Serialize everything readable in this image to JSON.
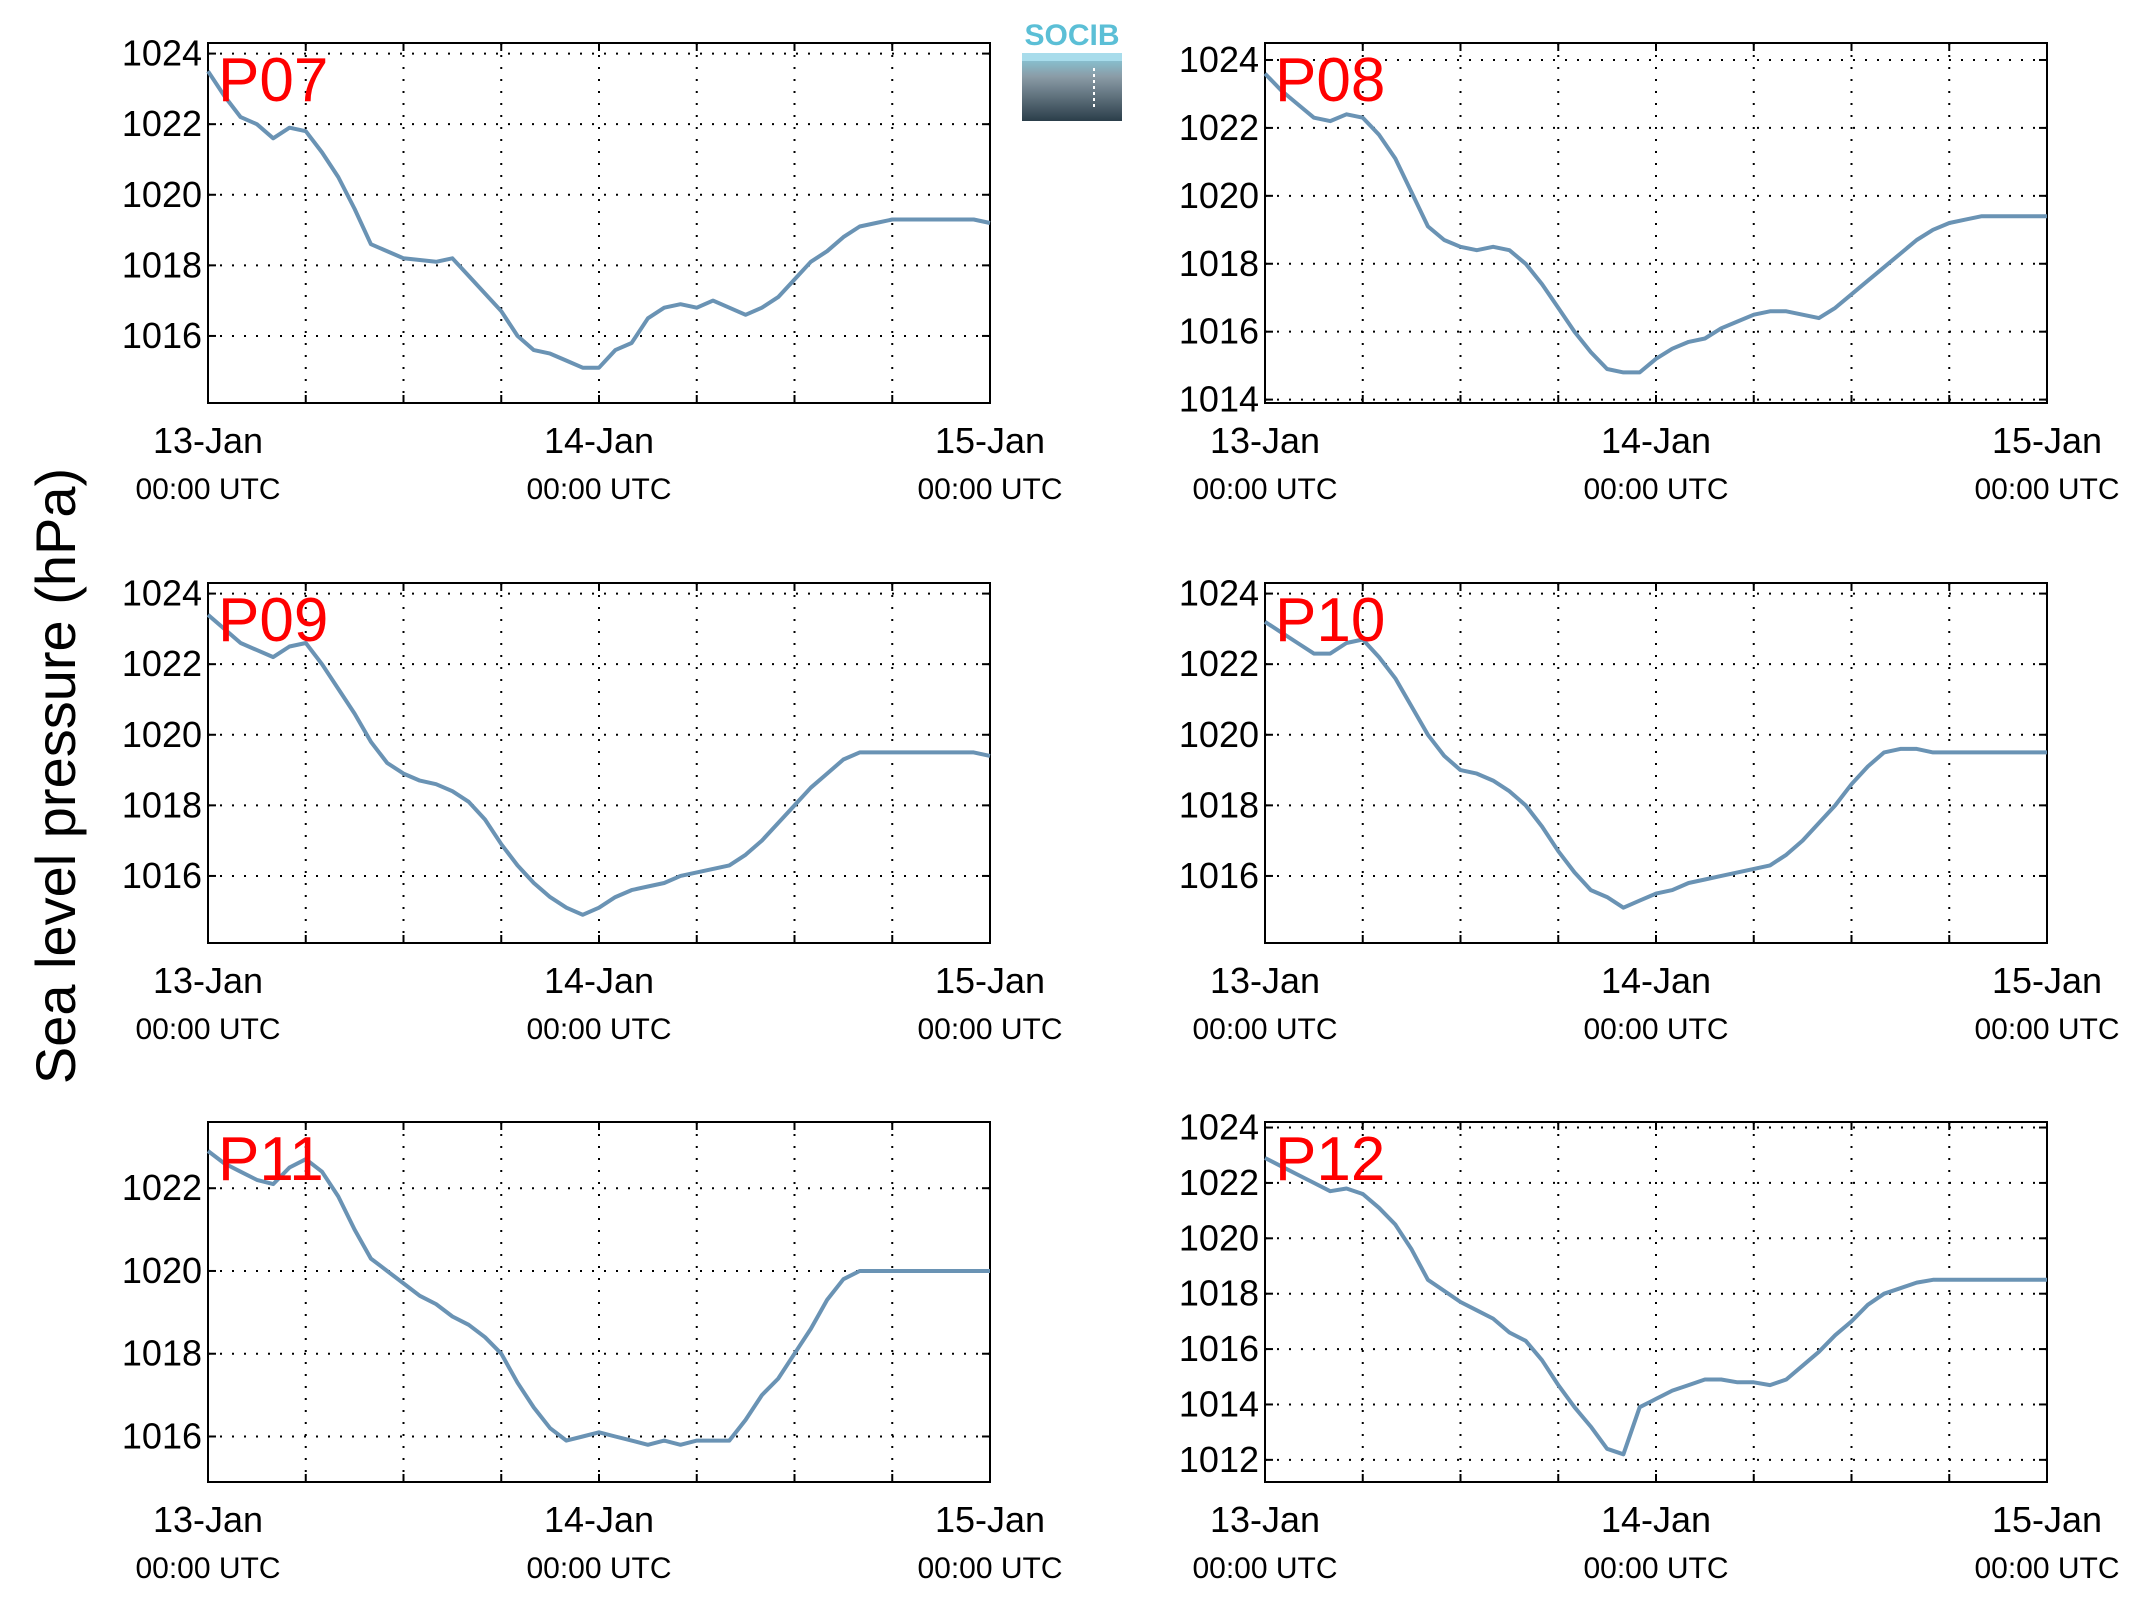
{
  "figure": {
    "ylabel": "Sea level pressure (hPa)",
    "logo_text": "SOCIB",
    "colors": {
      "line": "#6a93b4",
      "panel_title": "#ff0000",
      "logo_text": "#5bbfd6",
      "logo_top": "#86cfe0",
      "logo_bottom": "#2b3e4a"
    }
  },
  "chart_data": [
    {
      "type": "line",
      "title": "P07",
      "ylim": [
        1014.1,
        1024.3
      ],
      "yticks": [
        1016,
        1018,
        1020,
        1022,
        1024
      ],
      "x_ticks": [
        {
          "date": "13-Jan",
          "time": "00:00 UTC"
        },
        {
          "date": "14-Jan",
          "time": "00:00 UTC"
        },
        {
          "date": "15-Jan",
          "time": "00:00 UTC"
        }
      ],
      "grid": true,
      "x_range_hours": [
        0,
        48
      ],
      "x": [
        0,
        1,
        2,
        3,
        4,
        5,
        6,
        7,
        8,
        9,
        10,
        12,
        14,
        15,
        16,
        18,
        19,
        20,
        21,
        22,
        23,
        24,
        25,
        26,
        27,
        28,
        29,
        30,
        31,
        32,
        33,
        34,
        35,
        36,
        37,
        38,
        39,
        40,
        41,
        42,
        43,
        44,
        45,
        46,
        47,
        48
      ],
      "y": [
        1023.5,
        1022.8,
        1022.2,
        1022.0,
        1021.6,
        1021.9,
        1021.8,
        1021.2,
        1020.5,
        1019.6,
        1018.6,
        1018.2,
        1018.1,
        1018.2,
        1017.7,
        1016.7,
        1016.0,
        1015.6,
        1015.5,
        1015.3,
        1015.1,
        1015.1,
        1015.6,
        1015.8,
        1016.5,
        1016.8,
        1016.9,
        1016.8,
        1017.0,
        1016.8,
        1016.6,
        1016.8,
        1017.1,
        1017.6,
        1018.1,
        1018.4,
        1018.8,
        1019.1,
        1019.2,
        1019.3,
        1019.3,
        1019.3,
        1019.3,
        1019.3,
        1019.3,
        1019.2
      ]
    },
    {
      "type": "line",
      "title": "P08",
      "ylim": [
        1013.9,
        1024.5
      ],
      "yticks": [
        1014,
        1016,
        1018,
        1020,
        1022,
        1024
      ],
      "x_ticks": [
        {
          "date": "13-Jan",
          "time": "00:00 UTC"
        },
        {
          "date": "14-Jan",
          "time": "00:00 UTC"
        },
        {
          "date": "15-Jan",
          "time": "00:00 UTC"
        }
      ],
      "grid": true,
      "x_range_hours": [
        0,
        48
      ],
      "x": [
        0,
        1,
        2,
        3,
        4,
        5,
        6,
        7,
        8,
        9,
        10,
        11,
        12,
        13,
        14,
        15,
        16,
        17,
        18,
        19,
        20,
        21,
        22,
        23,
        24,
        25,
        26,
        27,
        28,
        29,
        30,
        31,
        32,
        33,
        34,
        35,
        36,
        37,
        38,
        39,
        40,
        41,
        42,
        43,
        44,
        45,
        46,
        47,
        48
      ],
      "y": [
        1023.6,
        1023.1,
        1022.7,
        1022.3,
        1022.2,
        1022.4,
        1022.3,
        1021.8,
        1021.1,
        1020.1,
        1019.1,
        1018.7,
        1018.5,
        1018.4,
        1018.5,
        1018.4,
        1018.0,
        1017.4,
        1016.7,
        1016.0,
        1015.4,
        1014.9,
        1014.8,
        1014.8,
        1015.2,
        1015.5,
        1015.7,
        1015.8,
        1016.1,
        1016.3,
        1016.5,
        1016.6,
        1016.6,
        1016.5,
        1016.4,
        1016.7,
        1017.1,
        1017.5,
        1017.9,
        1018.3,
        1018.7,
        1019.0,
        1019.2,
        1019.3,
        1019.4,
        1019.4,
        1019.4,
        1019.4,
        1019.4
      ]
    },
    {
      "type": "line",
      "title": "P09",
      "ylim": [
        1014.1,
        1024.3
      ],
      "yticks": [
        1016,
        1018,
        1020,
        1022,
        1024
      ],
      "x_ticks": [
        {
          "date": "13-Jan",
          "time": "00:00 UTC"
        },
        {
          "date": "14-Jan",
          "time": "00:00 UTC"
        },
        {
          "date": "15-Jan",
          "time": "00:00 UTC"
        }
      ],
      "grid": true,
      "x_range_hours": [
        0,
        48
      ],
      "x": [
        0,
        1,
        2,
        3,
        4,
        5,
        6,
        7,
        8,
        9,
        10,
        11,
        12,
        13,
        14,
        15,
        16,
        17,
        18,
        19,
        20,
        21,
        22,
        23,
        24,
        25,
        26,
        27,
        28,
        29,
        30,
        31,
        32,
        33,
        34,
        35,
        36,
        37,
        38,
        39,
        40,
        41,
        42,
        43,
        44,
        45,
        46,
        47,
        48
      ],
      "y": [
        1023.4,
        1023.0,
        1022.6,
        1022.4,
        1022.2,
        1022.5,
        1022.6,
        1022.0,
        1021.3,
        1020.6,
        1019.8,
        1019.2,
        1018.9,
        1018.7,
        1018.6,
        1018.4,
        1018.1,
        1017.6,
        1016.9,
        1016.3,
        1015.8,
        1015.4,
        1015.1,
        1014.9,
        1015.1,
        1015.4,
        1015.6,
        1015.7,
        1015.8,
        1016.0,
        1016.1,
        1016.2,
        1016.3,
        1016.6,
        1017.0,
        1017.5,
        1018.0,
        1018.5,
        1018.9,
        1019.3,
        1019.5,
        1019.5,
        1019.5,
        1019.5,
        1019.5,
        1019.5,
        1019.5,
        1019.5,
        1019.4
      ]
    },
    {
      "type": "line",
      "title": "P10",
      "ylim": [
        1014.1,
        1024.3
      ],
      "yticks": [
        1016,
        1018,
        1020,
        1022,
        1024
      ],
      "x_ticks": [
        {
          "date": "13-Jan",
          "time": "00:00 UTC"
        },
        {
          "date": "14-Jan",
          "time": "00:00 UTC"
        },
        {
          "date": "15-Jan",
          "time": "00:00 UTC"
        }
      ],
      "grid": true,
      "x_range_hours": [
        0,
        48
      ],
      "x": [
        0,
        1,
        2,
        3,
        4,
        5,
        6,
        7,
        8,
        9,
        10,
        11,
        12,
        13,
        14,
        15,
        16,
        17,
        18,
        19,
        20,
        21,
        22,
        23,
        24,
        25,
        26,
        27,
        28,
        29,
        30,
        31,
        32,
        33,
        34,
        35,
        36,
        37,
        38,
        39,
        40,
        41,
        42,
        43,
        44,
        45,
        46,
        47,
        48
      ],
      "y": [
        1023.2,
        1022.9,
        1022.6,
        1022.3,
        1022.3,
        1022.6,
        1022.7,
        1022.2,
        1021.6,
        1020.8,
        1020.0,
        1019.4,
        1019.0,
        1018.9,
        1018.7,
        1018.4,
        1018.0,
        1017.4,
        1016.7,
        1016.1,
        1015.6,
        1015.4,
        1015.1,
        1015.3,
        1015.5,
        1015.6,
        1015.8,
        1015.9,
        1016.0,
        1016.1,
        1016.2,
        1016.3,
        1016.6,
        1017.0,
        1017.5,
        1018.0,
        1018.6,
        1019.1,
        1019.5,
        1019.6,
        1019.6,
        1019.5,
        1019.5,
        1019.5,
        1019.5,
        1019.5,
        1019.5,
        1019.5,
        1019.5
      ]
    },
    {
      "type": "line",
      "title": "P11",
      "ylim": [
        1014.9,
        1023.6
      ],
      "yticks": [
        1016,
        1018,
        1020,
        1022
      ],
      "x_ticks": [
        {
          "date": "13-Jan",
          "time": "00:00 UTC"
        },
        {
          "date": "14-Jan",
          "time": "00:00 UTC"
        },
        {
          "date": "15-Jan",
          "time": "00:00 UTC"
        }
      ],
      "grid": true,
      "x_range_hours": [
        0,
        48
      ],
      "x": [
        0,
        1,
        2,
        3,
        4,
        5,
        6,
        7,
        8,
        9,
        10,
        11,
        12,
        13,
        14,
        15,
        16,
        17,
        18,
        19,
        20,
        21,
        22,
        23,
        24,
        25,
        26,
        27,
        28,
        29,
        30,
        31,
        32,
        33,
        34,
        35,
        36,
        37,
        38,
        39,
        40,
        41,
        42,
        43,
        44,
        45,
        46,
        47,
        48
      ],
      "y": [
        1022.9,
        1022.6,
        1022.4,
        1022.2,
        1022.1,
        1022.5,
        1022.7,
        1022.4,
        1021.8,
        1021.0,
        1020.3,
        1020.0,
        1019.7,
        1019.4,
        1019.2,
        1018.9,
        1018.7,
        1018.4,
        1018.0,
        1017.3,
        1016.7,
        1016.2,
        1015.9,
        1016.0,
        1016.1,
        1016.0,
        1015.9,
        1015.8,
        1015.9,
        1015.8,
        1015.9,
        1015.9,
        1015.9,
        1016.4,
        1017.0,
        1017.4,
        1018.0,
        1018.6,
        1019.3,
        1019.8,
        1020.0,
        1020.0,
        1020.0,
        1020.0,
        1020.0,
        1020.0,
        1020.0,
        1020.0,
        1020.0
      ]
    },
    {
      "type": "line",
      "title": "P12",
      "ylim": [
        1011.2,
        1024.2
      ],
      "yticks": [
        1012,
        1014,
        1016,
        1018,
        1020,
        1022,
        1024
      ],
      "x_ticks": [
        {
          "date": "13-Jan",
          "time": "00:00 UTC"
        },
        {
          "date": "14-Jan",
          "time": "00:00 UTC"
        },
        {
          "date": "15-Jan",
          "time": "00:00 UTC"
        }
      ],
      "grid": true,
      "x_range_hours": [
        0,
        48
      ],
      "x": [
        0,
        1,
        2,
        3,
        4,
        5,
        6,
        7,
        8,
        9,
        10,
        11,
        12,
        13,
        14,
        15,
        16,
        17,
        18,
        19,
        20,
        21,
        22,
        23,
        24,
        25,
        26,
        27,
        28,
        29,
        30,
        31,
        32,
        33,
        34,
        35,
        36,
        37,
        38,
        39,
        40,
        41,
        42,
        43,
        44,
        45,
        46,
        47,
        48
      ],
      "y": [
        1022.9,
        1022.6,
        1022.3,
        1022.0,
        1021.7,
        1021.8,
        1021.6,
        1021.1,
        1020.5,
        1019.6,
        1018.5,
        1018.1,
        1017.7,
        1017.4,
        1017.1,
        1016.6,
        1016.3,
        1015.6,
        1014.7,
        1013.9,
        1013.2,
        1012.4,
        1012.2,
        1013.9,
        1014.2,
        1014.5,
        1014.7,
        1014.9,
        1014.9,
        1014.8,
        1014.8,
        1014.7,
        1014.9,
        1015.4,
        1015.9,
        1016.5,
        1017.0,
        1017.6,
        1018.0,
        1018.2,
        1018.4,
        1018.5,
        1018.5,
        1018.5,
        1018.5,
        1018.5,
        1018.5,
        1018.5,
        1018.5
      ]
    }
  ]
}
